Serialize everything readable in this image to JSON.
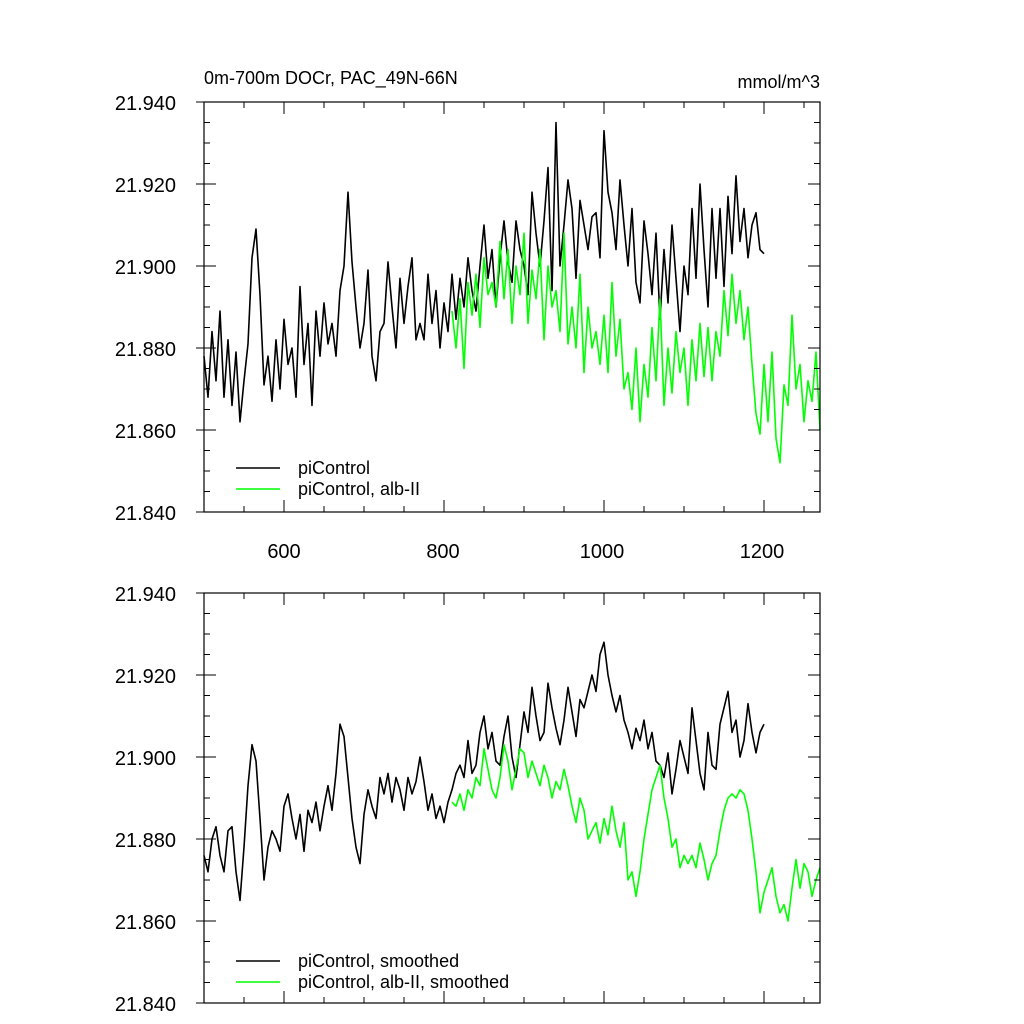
{
  "chart_data": [
    {
      "type": "line",
      "title": "0m-700m DOCr, PAC_49N-66N",
      "units": "mmol/m^3",
      "xlabel": "",
      "ylabel": "",
      "xlim": [
        500,
        1270
      ],
      "ylim": [
        21.84,
        21.94
      ],
      "x_ticks": [
        "600",
        "800",
        "1000",
        "1200"
      ],
      "y_ticks": [
        "21.940",
        "21.920",
        "21.900",
        "21.880",
        "21.860",
        "21.840"
      ],
      "grid": false,
      "legend": "bottom-left",
      "series": [
        {
          "name": "piControl",
          "color": "#000000",
          "x": [
            500,
            505,
            510,
            515,
            520,
            525,
            530,
            535,
            540,
            545,
            550,
            555,
            560,
            565,
            570,
            575,
            580,
            585,
            590,
            595,
            600,
            605,
            610,
            615,
            620,
            625,
            630,
            635,
            640,
            645,
            650,
            655,
            660,
            665,
            670,
            675,
            680,
            685,
            690,
            695,
            700,
            705,
            710,
            715,
            720,
            725,
            730,
            735,
            740,
            745,
            750,
            755,
            760,
            765,
            770,
            775,
            780,
            785,
            790,
            795,
            800,
            805,
            810,
            815,
            820,
            825,
            830,
            835,
            840,
            845,
            850,
            855,
            860,
            865,
            870,
            875,
            880,
            885,
            890,
            895,
            900,
            905,
            910,
            915,
            920,
            925,
            930,
            935,
            940,
            945,
            950,
            955,
            960,
            965,
            970,
            975,
            980,
            985,
            990,
            995,
            1000,
            1005,
            1010,
            1015,
            1020,
            1025,
            1030,
            1035,
            1040,
            1045,
            1050,
            1055,
            1060,
            1065,
            1070,
            1075,
            1080,
            1085,
            1090,
            1095,
            1100,
            1105,
            1110,
            1115,
            1120,
            1125,
            1130,
            1135,
            1140,
            1145,
            1150,
            1155,
            1160,
            1165,
            1170,
            1175,
            1180,
            1185,
            1190,
            1195,
            1200
          ],
          "values": [
            21.878,
            21.868,
            21.884,
            21.872,
            21.889,
            21.868,
            21.882,
            21.866,
            21.879,
            21.862,
            21.872,
            21.881,
            21.902,
            21.909,
            21.893,
            21.871,
            21.878,
            21.867,
            21.882,
            21.87,
            21.887,
            21.876,
            21.88,
            21.868,
            21.895,
            21.876,
            21.886,
            21.866,
            21.889,
            21.878,
            21.891,
            21.881,
            21.886,
            21.878,
            21.894,
            21.9,
            21.918,
            21.901,
            21.89,
            21.88,
            21.886,
            21.899,
            21.878,
            21.872,
            21.884,
            21.886,
            21.901,
            21.89,
            21.88,
            21.897,
            21.886,
            21.895,
            21.902,
            21.882,
            21.886,
            21.882,
            21.898,
            21.886,
            21.894,
            21.88,
            21.891,
            21.884,
            21.898,
            21.887,
            21.897,
            21.89,
            21.902,
            21.894,
            21.889,
            21.9,
            21.91,
            21.897,
            21.904,
            21.89,
            21.902,
            21.911,
            21.901,
            21.896,
            21.911,
            21.904,
            21.9,
            21.893,
            21.918,
            21.908,
            21.9,
            21.911,
            21.924,
            21.894,
            21.935,
            21.9,
            21.91,
            21.921,
            21.914,
            21.897,
            21.916,
            21.91,
            21.904,
            21.912,
            21.913,
            21.902,
            21.933,
            21.918,
            21.913,
            21.904,
            21.921,
            21.91,
            21.9,
            21.914,
            21.896,
            21.891,
            21.911,
            21.903,
            21.893,
            21.908,
            21.887,
            21.904,
            21.891,
            21.91,
            21.897,
            21.884,
            21.9,
            21.893,
            21.914,
            21.897,
            21.92,
            21.904,
            21.89,
            21.914,
            21.897,
            21.914,
            21.895,
            21.917,
            21.903,
            21.922,
            21.906,
            21.914,
            21.902,
            21.91,
            21.913,
            21.904,
            21.903
          ]
        },
        {
          "name": "piControl, alb-II",
          "color": "#00ff00",
          "x": [
            810,
            815,
            820,
            825,
            830,
            835,
            840,
            845,
            850,
            855,
            860,
            865,
            870,
            875,
            880,
            885,
            890,
            895,
            900,
            905,
            910,
            915,
            920,
            925,
            930,
            935,
            940,
            945,
            950,
            955,
            960,
            965,
            970,
            975,
            980,
            985,
            990,
            995,
            1000,
            1005,
            1010,
            1015,
            1020,
            1025,
            1030,
            1035,
            1040,
            1045,
            1050,
            1055,
            1060,
            1065,
            1070,
            1075,
            1080,
            1085,
            1090,
            1095,
            1100,
            1105,
            1110,
            1115,
            1120,
            1125,
            1130,
            1135,
            1140,
            1145,
            1150,
            1155,
            1160,
            1165,
            1170,
            1175,
            1180,
            1185,
            1190,
            1195,
            1200,
            1205,
            1210,
            1215,
            1220,
            1225,
            1230,
            1235,
            1240,
            1245,
            1250,
            1255,
            1260,
            1265,
            1270
          ],
          "values": [
            21.889,
            21.88,
            21.892,
            21.875,
            21.896,
            21.888,
            21.898,
            21.885,
            21.902,
            21.893,
            21.896,
            21.89,
            21.906,
            21.892,
            21.904,
            21.886,
            21.9,
            21.893,
            21.908,
            21.886,
            21.899,
            21.892,
            21.904,
            21.882,
            21.9,
            21.89,
            21.894,
            21.884,
            21.908,
            21.881,
            21.89,
            21.88,
            21.898,
            21.874,
            21.89,
            21.88,
            21.884,
            21.876,
            21.888,
            21.874,
            21.896,
            21.878,
            21.887,
            21.87,
            21.874,
            21.865,
            21.88,
            21.862,
            21.876,
            21.868,
            21.885,
            21.872,
            21.892,
            21.866,
            21.88,
            21.869,
            21.884,
            21.874,
            21.88,
            21.866,
            21.882,
            21.872,
            21.886,
            21.873,
            21.885,
            21.872,
            21.884,
            21.878,
            21.894,
            21.883,
            21.898,
            21.886,
            21.894,
            21.882,
            21.89,
            21.876,
            21.864,
            21.859,
            21.876,
            21.862,
            21.879,
            21.858,
            21.852,
            21.871,
            21.866,
            21.888,
            21.87,
            21.876,
            21.862,
            21.872,
            21.867,
            21.879,
            21.86
          ]
        }
      ]
    },
    {
      "type": "line",
      "title": "",
      "xlabel": "",
      "ylabel": "",
      "xlim": [
        500,
        1270
      ],
      "ylim": [
        21.84,
        21.94
      ],
      "x_ticks": [],
      "y_ticks": [
        "21.940",
        "21.920",
        "21.900",
        "21.880",
        "21.860",
        "21.840"
      ],
      "grid": false,
      "legend": "bottom-left",
      "series": [
        {
          "name": "piControl, smoothed",
          "color": "#000000",
          "x": [
            500,
            505,
            510,
            515,
            520,
            525,
            530,
            535,
            540,
            545,
            550,
            555,
            560,
            565,
            570,
            575,
            580,
            585,
            590,
            595,
            600,
            605,
            610,
            615,
            620,
            625,
            630,
            635,
            640,
            645,
            650,
            655,
            660,
            665,
            670,
            675,
            680,
            685,
            690,
            695,
            700,
            705,
            710,
            715,
            720,
            725,
            730,
            735,
            740,
            745,
            750,
            755,
            760,
            765,
            770,
            775,
            780,
            785,
            790,
            795,
            800,
            805,
            810,
            815,
            820,
            825,
            830,
            835,
            840,
            845,
            850,
            855,
            860,
            865,
            870,
            875,
            880,
            885,
            890,
            895,
            900,
            905,
            910,
            915,
            920,
            925,
            930,
            935,
            940,
            945,
            950,
            955,
            960,
            965,
            970,
            975,
            980,
            985,
            990,
            995,
            1000,
            1005,
            1010,
            1015,
            1020,
            1025,
            1030,
            1035,
            1040,
            1045,
            1050,
            1055,
            1060,
            1065,
            1070,
            1075,
            1080,
            1085,
            1090,
            1095,
            1100,
            1105,
            1110,
            1115,
            1120,
            1125,
            1130,
            1135,
            1140,
            1145,
            1150,
            1155,
            1160,
            1165,
            1170,
            1175,
            1180,
            1185,
            1190,
            1195,
            1200
          ],
          "values": [
            21.876,
            21.872,
            21.88,
            21.883,
            21.876,
            21.872,
            21.882,
            21.883,
            21.872,
            21.865,
            21.878,
            21.893,
            21.903,
            21.899,
            21.885,
            21.87,
            21.878,
            21.882,
            21.88,
            21.877,
            21.888,
            21.891,
            21.885,
            21.88,
            21.886,
            21.877,
            21.887,
            21.884,
            21.889,
            21.882,
            21.888,
            21.893,
            21.887,
            21.896,
            21.908,
            21.905,
            21.895,
            21.885,
            21.878,
            21.874,
            21.886,
            21.892,
            21.888,
            21.885,
            21.895,
            21.891,
            21.896,
            21.889,
            21.895,
            21.892,
            21.887,
            21.895,
            21.891,
            21.894,
            21.9,
            21.894,
            21.887,
            21.891,
            21.885,
            21.888,
            21.884,
            21.889,
            21.892,
            21.896,
            21.898,
            21.895,
            21.904,
            21.896,
            21.898,
            21.906,
            21.91,
            21.902,
            21.906,
            21.899,
            21.898,
            21.905,
            21.91,
            21.9,
            21.895,
            21.903,
            21.911,
            21.906,
            21.917,
            21.91,
            21.904,
            21.906,
            21.918,
            21.912,
            21.907,
            21.903,
            21.909,
            21.917,
            21.911,
            21.905,
            21.914,
            21.912,
            21.916,
            21.92,
            21.916,
            21.925,
            21.928,
            21.92,
            21.915,
            21.911,
            21.915,
            21.909,
            21.906,
            21.902,
            21.907,
            21.904,
            21.909,
            21.902,
            21.906,
            21.899,
            21.898,
            21.895,
            21.901,
            21.891,
            21.897,
            21.904,
            21.9,
            21.896,
            21.912,
            21.904,
            21.896,
            21.892,
            21.906,
            21.898,
            21.897,
            21.908,
            21.912,
            21.916,
            21.906,
            21.909,
            21.9,
            21.904,
            21.913,
            21.906,
            21.901,
            21.906,
            21.908
          ]
        },
        {
          "name": "piControl, alb-II, smoothed",
          "color": "#00ff00",
          "x": [
            810,
            815,
            820,
            825,
            830,
            835,
            840,
            845,
            850,
            855,
            860,
            865,
            870,
            875,
            880,
            885,
            890,
            895,
            900,
            905,
            910,
            915,
            920,
            925,
            930,
            935,
            940,
            945,
            950,
            955,
            960,
            965,
            970,
            975,
            980,
            985,
            990,
            995,
            1000,
            1005,
            1010,
            1015,
            1020,
            1025,
            1030,
            1035,
            1040,
            1045,
            1050,
            1055,
            1060,
            1065,
            1070,
            1075,
            1080,
            1085,
            1090,
            1095,
            1100,
            1105,
            1110,
            1115,
            1120,
            1125,
            1130,
            1135,
            1140,
            1145,
            1150,
            1155,
            1160,
            1165,
            1170,
            1175,
            1180,
            1185,
            1190,
            1195,
            1200,
            1205,
            1210,
            1215,
            1220,
            1225,
            1230,
            1235,
            1240,
            1245,
            1250,
            1255,
            1260,
            1265,
            1270
          ],
          "values": [
            21.889,
            21.888,
            21.891,
            21.887,
            21.892,
            21.89,
            21.895,
            21.893,
            21.902,
            21.897,
            21.892,
            21.89,
            21.895,
            21.903,
            21.899,
            21.892,
            21.897,
            21.902,
            21.901,
            21.895,
            21.899,
            21.896,
            21.893,
            21.898,
            21.895,
            21.89,
            21.894,
            21.892,
            21.897,
            21.893,
            21.888,
            21.884,
            21.89,
            21.887,
            21.88,
            21.882,
            21.884,
            21.879,
            21.885,
            21.881,
            21.888,
            21.882,
            21.878,
            21.884,
            21.87,
            21.872,
            21.866,
            21.872,
            21.88,
            21.886,
            21.892,
            21.895,
            21.898,
            21.89,
            21.885,
            21.878,
            21.88,
            21.873,
            21.876,
            21.874,
            21.876,
            21.873,
            21.879,
            21.875,
            21.87,
            21.874,
            21.876,
            21.882,
            21.887,
            21.89,
            21.891,
            21.89,
            21.892,
            21.891,
            21.887,
            21.88,
            21.872,
            21.862,
            21.867,
            21.87,
            21.873,
            21.866,
            21.862,
            21.864,
            21.86,
            21.868,
            21.875,
            21.868,
            21.874,
            21.872,
            21.866,
            21.87,
            21.873
          ]
        }
      ]
    }
  ]
}
